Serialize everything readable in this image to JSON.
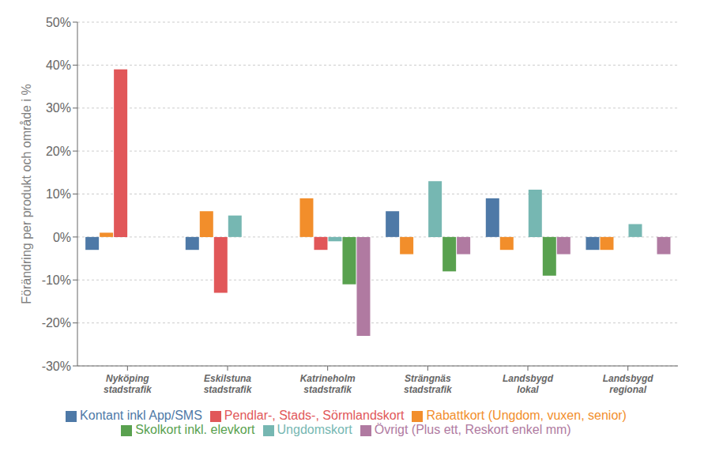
{
  "chart_data": {
    "type": "bar",
    "categories": [
      "Nyköping\nstadstrafik",
      "Eskilstuna\nstadstrafik",
      "Katrineholm\nstadstrafik",
      "Strängnäs\nstadstrafik",
      "Landsbygd\nlokal",
      "Landsbygd\nregional"
    ],
    "series": [
      {
        "name": "Kontant inkl App/SMS",
        "color": "#4e79a7",
        "values": [
          -3,
          -3,
          null,
          6,
          9,
          -3
        ]
      },
      {
        "name": "Rabattkort (Ungdom, vuxen, senior)",
        "color": "#f28e2b",
        "values": [
          1,
          6,
          9,
          -4,
          -3,
          -3
        ]
      },
      {
        "name": "Pendlar-, Stads-, Sörmlandskort",
        "color": "#e15759",
        "values": [
          39,
          -13,
          -3,
          null,
          null,
          null
        ]
      },
      {
        "name": "Ungdomskort",
        "color": "#76b7b2",
        "values": [
          null,
          5,
          -1,
          13,
          11,
          3
        ]
      },
      {
        "name": "Skolkort inkl. elevkort",
        "color": "#59a14f",
        "values": [
          null,
          null,
          -11,
          -8,
          -9,
          null
        ]
      },
      {
        "name": "Övrigt (Plus ett, Reskort enkel mm)",
        "color": "#b07aa1",
        "values": [
          null,
          null,
          -23,
          -4,
          -4,
          -4
        ]
      }
    ],
    "ylabel": "Förändring per produkt och område i %",
    "ylim": [
      -30,
      50
    ],
    "yticks": [
      {
        "value": -30,
        "label": "-30%"
      },
      {
        "value": -20,
        "label": "-20%"
      },
      {
        "value": -10,
        "label": "-10%"
      },
      {
        "value": 0,
        "label": "0%"
      },
      {
        "value": 10,
        "label": "10%"
      },
      {
        "value": 20,
        "label": "20%"
      },
      {
        "value": 30,
        "label": "30%"
      },
      {
        "value": 40,
        "label": "40%"
      },
      {
        "value": 50,
        "label": "50%"
      }
    ],
    "grid": true,
    "legend": "bottom"
  }
}
